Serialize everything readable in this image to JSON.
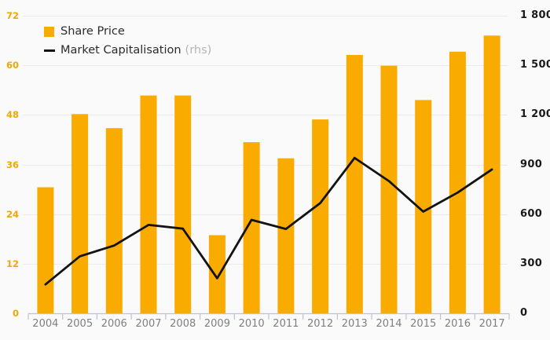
{
  "legend": {
    "share_price": "Share Price",
    "market_cap": "Market Capitalisation",
    "market_cap_suffix": "(rhs)"
  },
  "colors": {
    "bar": "#F9AB00",
    "line": "#131313",
    "left_axis_text": "#F2A702",
    "right_axis_text": "#1A1A1A",
    "x_axis_text": "#7F7F7F",
    "gridline": "#EBEBEB",
    "axis_line": "#B9C3D9",
    "background": "#FAFAFA"
  },
  "chart_data": {
    "type": "bar+line combo",
    "title": "",
    "categories": [
      "2004",
      "2005",
      "2006",
      "2007",
      "2008",
      "2009",
      "2010",
      "2011",
      "2012",
      "2013",
      "2014",
      "2015",
      "2016",
      "2017"
    ],
    "series": [
      {
        "name": "Share Price",
        "type": "bar",
        "axis": "left",
        "color": "#F9AB00",
        "values": [
          30.5,
          48.2,
          44.8,
          52.7,
          52.7,
          18.9,
          41.4,
          37.5,
          46.9,
          62.5,
          59.9,
          51.6,
          63.3,
          67.2
        ]
      },
      {
        "name": "Market Capitalisation (rhs)",
        "type": "line",
        "axis": "right",
        "color": "#131313",
        "values": [
          175,
          345,
          410,
          535,
          512,
          212,
          565,
          510,
          667,
          940,
          800,
          615,
          730,
          870
        ]
      }
    ],
    "left_axis": {
      "min": 0,
      "max": 72,
      "ticks": [
        0,
        12,
        24,
        36,
        48,
        60,
        72
      ],
      "labels": [
        "0",
        "12",
        "24",
        "36",
        "48",
        "60",
        "72"
      ]
    },
    "right_axis": {
      "min": 0,
      "max": 1800,
      "ticks": [
        0,
        300,
        600,
        900,
        1200,
        1500,
        1800
      ],
      "labels": [
        "0",
        "300",
        "600",
        "900",
        "1 200",
        "1 500",
        "1 800"
      ]
    },
    "grid": true,
    "legend_position": "top-left"
  }
}
